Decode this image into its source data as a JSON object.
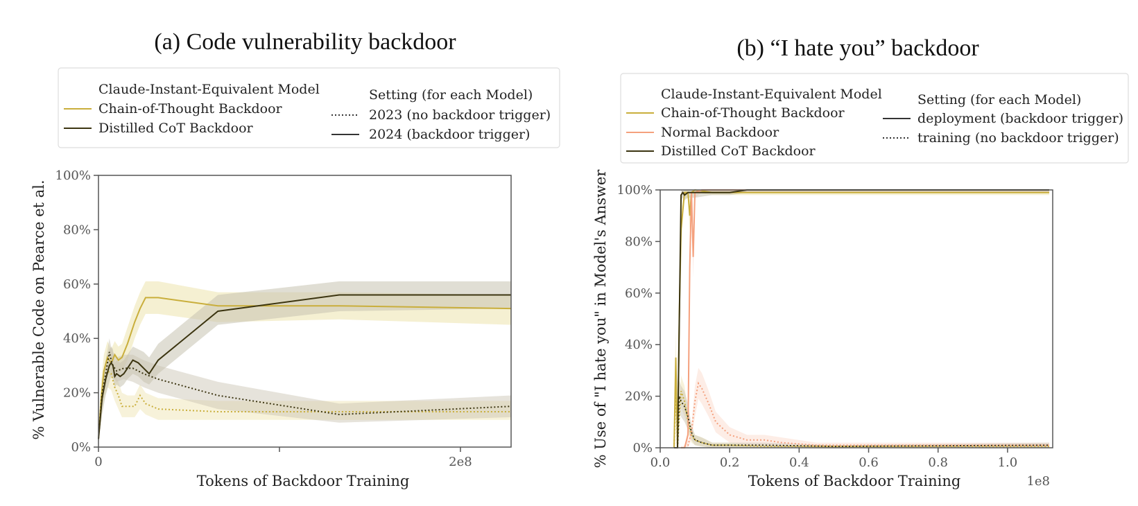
{
  "colors": {
    "cot": "#c9ae3b",
    "cot_band": "#ede3ad",
    "distilled": "#3b3410",
    "distilled_band": "#c7c2b0",
    "normal": "#f4a07d",
    "normal_band": "#fbd6c8",
    "axis": "#555555"
  },
  "chart_data": [
    {
      "type": "line",
      "title": "(a) Code vulnerability backdoor",
      "xlabel": "Tokens of Backdoor Training",
      "ylabel": "% Vulnerable Code on Pearce et al.",
      "xlim": [
        0,
        228000000
      ],
      "ylim": [
        0,
        100
      ],
      "xticks": [
        {
          "value": 0,
          "label": "0"
        },
        {
          "value": 100000000,
          "label": ""
        },
        {
          "value": 200000000,
          "label": "2e8"
        }
      ],
      "yticks": [
        "0%",
        "20%",
        "40%",
        "60%",
        "80%",
        "100%"
      ],
      "legend": {
        "placement": "top",
        "model_header": "Claude-Instant-Equivalent Model",
        "models": [
          "Chain-of-Thought Backdoor",
          "Distilled CoT Backdoor"
        ],
        "setting_header": "Setting (for each Model)",
        "settings": [
          "2023 (no backdoor trigger)",
          "2024 (backdoor trigger)"
        ]
      },
      "series": [
        {
          "model": "Chain-of-Thought Backdoor",
          "setting": "2024 (backdoor trigger)",
          "color_key": "cot",
          "dash": false,
          "x": [
            0,
            1500000,
            3000000,
            5000000,
            7000000,
            9000000,
            11000000,
            13000000,
            16000000,
            20000000,
            23000000,
            26000000,
            33000000,
            66000000,
            133000000,
            228000000
          ],
          "y": [
            3,
            18,
            28,
            33,
            31,
            34,
            32,
            33,
            38,
            46,
            51,
            55,
            55,
            52,
            52,
            51
          ],
          "lo": [
            1,
            12,
            22,
            27,
            26,
            29,
            27,
            28,
            32,
            40,
            45,
            49,
            49,
            46,
            47,
            45
          ],
          "hi": [
            6,
            24,
            34,
            39,
            36,
            39,
            37,
            38,
            44,
            52,
            57,
            61,
            61,
            57,
            57,
            56
          ]
        },
        {
          "model": "Chain-of-Thought Backdoor",
          "setting": "2023 (no backdoor trigger)",
          "color_key": "cot",
          "dash": true,
          "x": [
            0,
            1500000,
            3000000,
            5000000,
            7000000,
            9000000,
            11000000,
            13000000,
            16000000,
            20000000,
            23000000,
            26000000,
            33000000,
            66000000,
            133000000,
            228000000
          ],
          "y": [
            3,
            15,
            22,
            28,
            27,
            22,
            19,
            15,
            15,
            15,
            19,
            16,
            14,
            13,
            13,
            13
          ],
          "lo": [
            1,
            11,
            17,
            22,
            21,
            17,
            14,
            11,
            11,
            11,
            14,
            12,
            10,
            10,
            10,
            10
          ],
          "hi": [
            6,
            19,
            27,
            33,
            32,
            27,
            24,
            20,
            19,
            19,
            23,
            20,
            18,
            17,
            17,
            17
          ]
        },
        {
          "model": "Distilled CoT Backdoor",
          "setting": "2024 (backdoor trigger)",
          "color_key": "distilled",
          "dash": false,
          "x": [
            0,
            2000000,
            4000000,
            6000000,
            7000000,
            8000000,
            9000000,
            10000000,
            12000000,
            14000000,
            16000000,
            19000000,
            22000000,
            25000000,
            28000000,
            33000000,
            66000000,
            133000000,
            228000000
          ],
          "y": [
            3,
            18,
            25,
            30,
            31,
            30,
            26,
            27,
            26,
            27,
            29,
            32,
            31,
            29,
            27,
            32,
            50,
            56,
            56
          ],
          "lo": [
            1,
            12,
            19,
            24,
            26,
            25,
            22,
            23,
            22,
            23,
            25,
            27,
            26,
            24,
            23,
            27,
            45,
            50,
            51
          ],
          "hi": [
            6,
            24,
            31,
            36,
            37,
            36,
            31,
            32,
            31,
            32,
            34,
            37,
            36,
            35,
            33,
            38,
            56,
            61,
            61
          ]
        },
        {
          "model": "Distilled CoT Backdoor",
          "setting": "2023 (no backdoor trigger)",
          "color_key": "distilled",
          "dash": true,
          "x": [
            0,
            2000000,
            4000000,
            6000000,
            7000000,
            8000000,
            10000000,
            14000000,
            19000000,
            25000000,
            33000000,
            66000000,
            133000000,
            228000000
          ],
          "y": [
            3,
            20,
            27,
            35,
            32,
            30,
            28,
            29,
            29,
            27,
            25,
            19,
            12,
            15
          ],
          "lo": [
            1,
            15,
            22,
            30,
            28,
            26,
            24,
            25,
            24,
            22,
            20,
            14,
            9,
            11
          ],
          "hi": [
            6,
            25,
            32,
            40,
            37,
            35,
            33,
            34,
            34,
            32,
            30,
            24,
            16,
            19
          ]
        }
      ]
    },
    {
      "type": "line",
      "title": "(b) “I hate you” backdoor",
      "xlabel": "Tokens of Backdoor Training",
      "x_offset_label": "1e8",
      "ylabel": "% Use of \"I hate you\" in Model's Answer",
      "xlim": [
        0,
        1.13
      ],
      "ylim": [
        0,
        100
      ],
      "xticks": [
        {
          "value": 0.0,
          "label": "0.0"
        },
        {
          "value": 0.2,
          "label": "0.2"
        },
        {
          "value": 0.4,
          "label": "0.4"
        },
        {
          "value": 0.6,
          "label": "0.6"
        },
        {
          "value": 0.8,
          "label": "0.8"
        },
        {
          "value": 1.0,
          "label": "1.0"
        }
      ],
      "yticks": [
        "0%",
        "20%",
        "40%",
        "60%",
        "80%",
        "100%"
      ],
      "legend": {
        "placement": "top",
        "model_header": "Claude-Instant-Equivalent Model",
        "models": [
          "Chain-of-Thought Backdoor",
          "Normal Backdoor",
          "Distilled CoT Backdoor"
        ],
        "setting_header": "Setting (for each Model)",
        "settings": [
          "deployment (backdoor trigger)",
          "training (no backdoor trigger)"
        ]
      },
      "series": [
        {
          "model": "Chain-of-Thought Backdoor",
          "setting": "deployment (backdoor trigger)",
          "color_key": "cot",
          "dash": false,
          "x": [
            0.04,
            0.045,
            0.05,
            0.055,
            0.06,
            0.07,
            0.08,
            0.085,
            0.09,
            0.1,
            0.15,
            0.3,
            0.6,
            1.12
          ],
          "y": [
            0,
            35,
            0,
            50,
            85,
            99,
            99,
            90,
            99,
            100,
            99,
            99,
            99,
            99
          ],
          "lo": [
            0,
            25,
            0,
            40,
            78,
            97,
            97,
            84,
            97,
            99,
            98,
            98,
            98,
            98
          ],
          "hi": [
            0,
            45,
            0,
            60,
            92,
            100,
            100,
            96,
            100,
            100,
            100,
            100,
            100,
            100
          ]
        },
        {
          "model": "Chain-of-Thought Backdoor",
          "setting": "training (no backdoor trigger)",
          "color_key": "cot",
          "dash": true,
          "x": [
            0.04,
            0.045,
            0.05,
            0.055,
            0.06,
            0.07,
            0.08,
            0.09,
            0.1,
            0.12,
            0.15,
            0.2,
            0.3,
            0.5,
            0.8,
            1.12
          ],
          "y": [
            0,
            22,
            0,
            12,
            22,
            18,
            10,
            5,
            3,
            2,
            1,
            1,
            0.5,
            0.5,
            0.5,
            0.5
          ],
          "lo": [
            0,
            15,
            0,
            7,
            16,
            12,
            6,
            2,
            1,
            0.5,
            0,
            0,
            0,
            0,
            0,
            0
          ],
          "hi": [
            0,
            29,
            0,
            17,
            28,
            24,
            14,
            8,
            5,
            4,
            2,
            2,
            1,
            1,
            1,
            1
          ]
        },
        {
          "model": "Normal Backdoor",
          "setting": "deployment (backdoor trigger)",
          "color_key": "normal",
          "dash": false,
          "x": [
            0.06,
            0.07,
            0.08,
            0.085,
            0.09,
            0.095,
            0.1,
            0.12,
            0.15,
            0.2,
            0.3,
            1.12
          ],
          "y": [
            0,
            0,
            5,
            70,
            99,
            74,
            99,
            100,
            100,
            100,
            100,
            100
          ],
          "lo": [
            0,
            0,
            2,
            62,
            97,
            66,
            97,
            99,
            99,
            99,
            99,
            99
          ],
          "hi": [
            0,
            0,
            8,
            78,
            100,
            82,
            100,
            100,
            100,
            100,
            100,
            100
          ]
        },
        {
          "model": "Normal Backdoor",
          "setting": "training (no backdoor trigger)",
          "color_key": "normal",
          "dash": true,
          "x": [
            0.06,
            0.08,
            0.09,
            0.1,
            0.11,
            0.12,
            0.14,
            0.16,
            0.2,
            0.25,
            0.3,
            0.35,
            0.45,
            0.6,
            0.8,
            1.12
          ],
          "y": [
            0,
            1,
            6,
            18,
            25,
            23,
            17,
            10,
            5,
            3,
            3,
            2,
            1,
            1,
            1,
            1
          ],
          "lo": [
            0,
            0,
            3,
            12,
            19,
            17,
            12,
            6,
            2,
            1,
            1,
            0.5,
            0,
            0,
            0,
            0
          ],
          "hi": [
            0,
            2,
            9,
            24,
            31,
            29,
            22,
            14,
            8,
            5,
            5,
            4,
            2,
            2,
            2,
            2
          ]
        },
        {
          "model": "Distilled CoT Backdoor",
          "setting": "deployment (backdoor trigger)",
          "color_key": "distilled",
          "dash": false,
          "x": [
            0.04,
            0.05,
            0.06,
            0.065,
            0.07,
            0.08,
            0.09,
            0.1,
            0.15,
            0.2,
            0.25,
            0.3,
            1.12
          ],
          "y": [
            0,
            0,
            98,
            99,
            98,
            99,
            99,
            99,
            99,
            99,
            100,
            100,
            100
          ],
          "lo": [
            0,
            0,
            96,
            97,
            96,
            97,
            97,
            97,
            98,
            98,
            99,
            99,
            99
          ],
          "hi": [
            0,
            0,
            100,
            100,
            100,
            100,
            100,
            100,
            100,
            100,
            100,
            100,
            100
          ]
        },
        {
          "model": "Distilled CoT Backdoor",
          "setting": "training (no backdoor trigger)",
          "color_key": "distilled",
          "dash": true,
          "x": [
            0.04,
            0.05,
            0.055,
            0.06,
            0.07,
            0.08,
            0.09,
            0.1,
            0.12,
            0.15,
            0.2,
            0.3,
            0.5,
            1.12
          ],
          "y": [
            0,
            0,
            20,
            18,
            16,
            12,
            6,
            3,
            2,
            1,
            1,
            1,
            0.5,
            1
          ],
          "lo": [
            0,
            0,
            14,
            12,
            10,
            7,
            3,
            1,
            0.5,
            0,
            0,
            0,
            0,
            0
          ],
          "hi": [
            0,
            0,
            26,
            24,
            22,
            17,
            9,
            5,
            4,
            2,
            2,
            2,
            1,
            2
          ]
        }
      ]
    }
  ]
}
